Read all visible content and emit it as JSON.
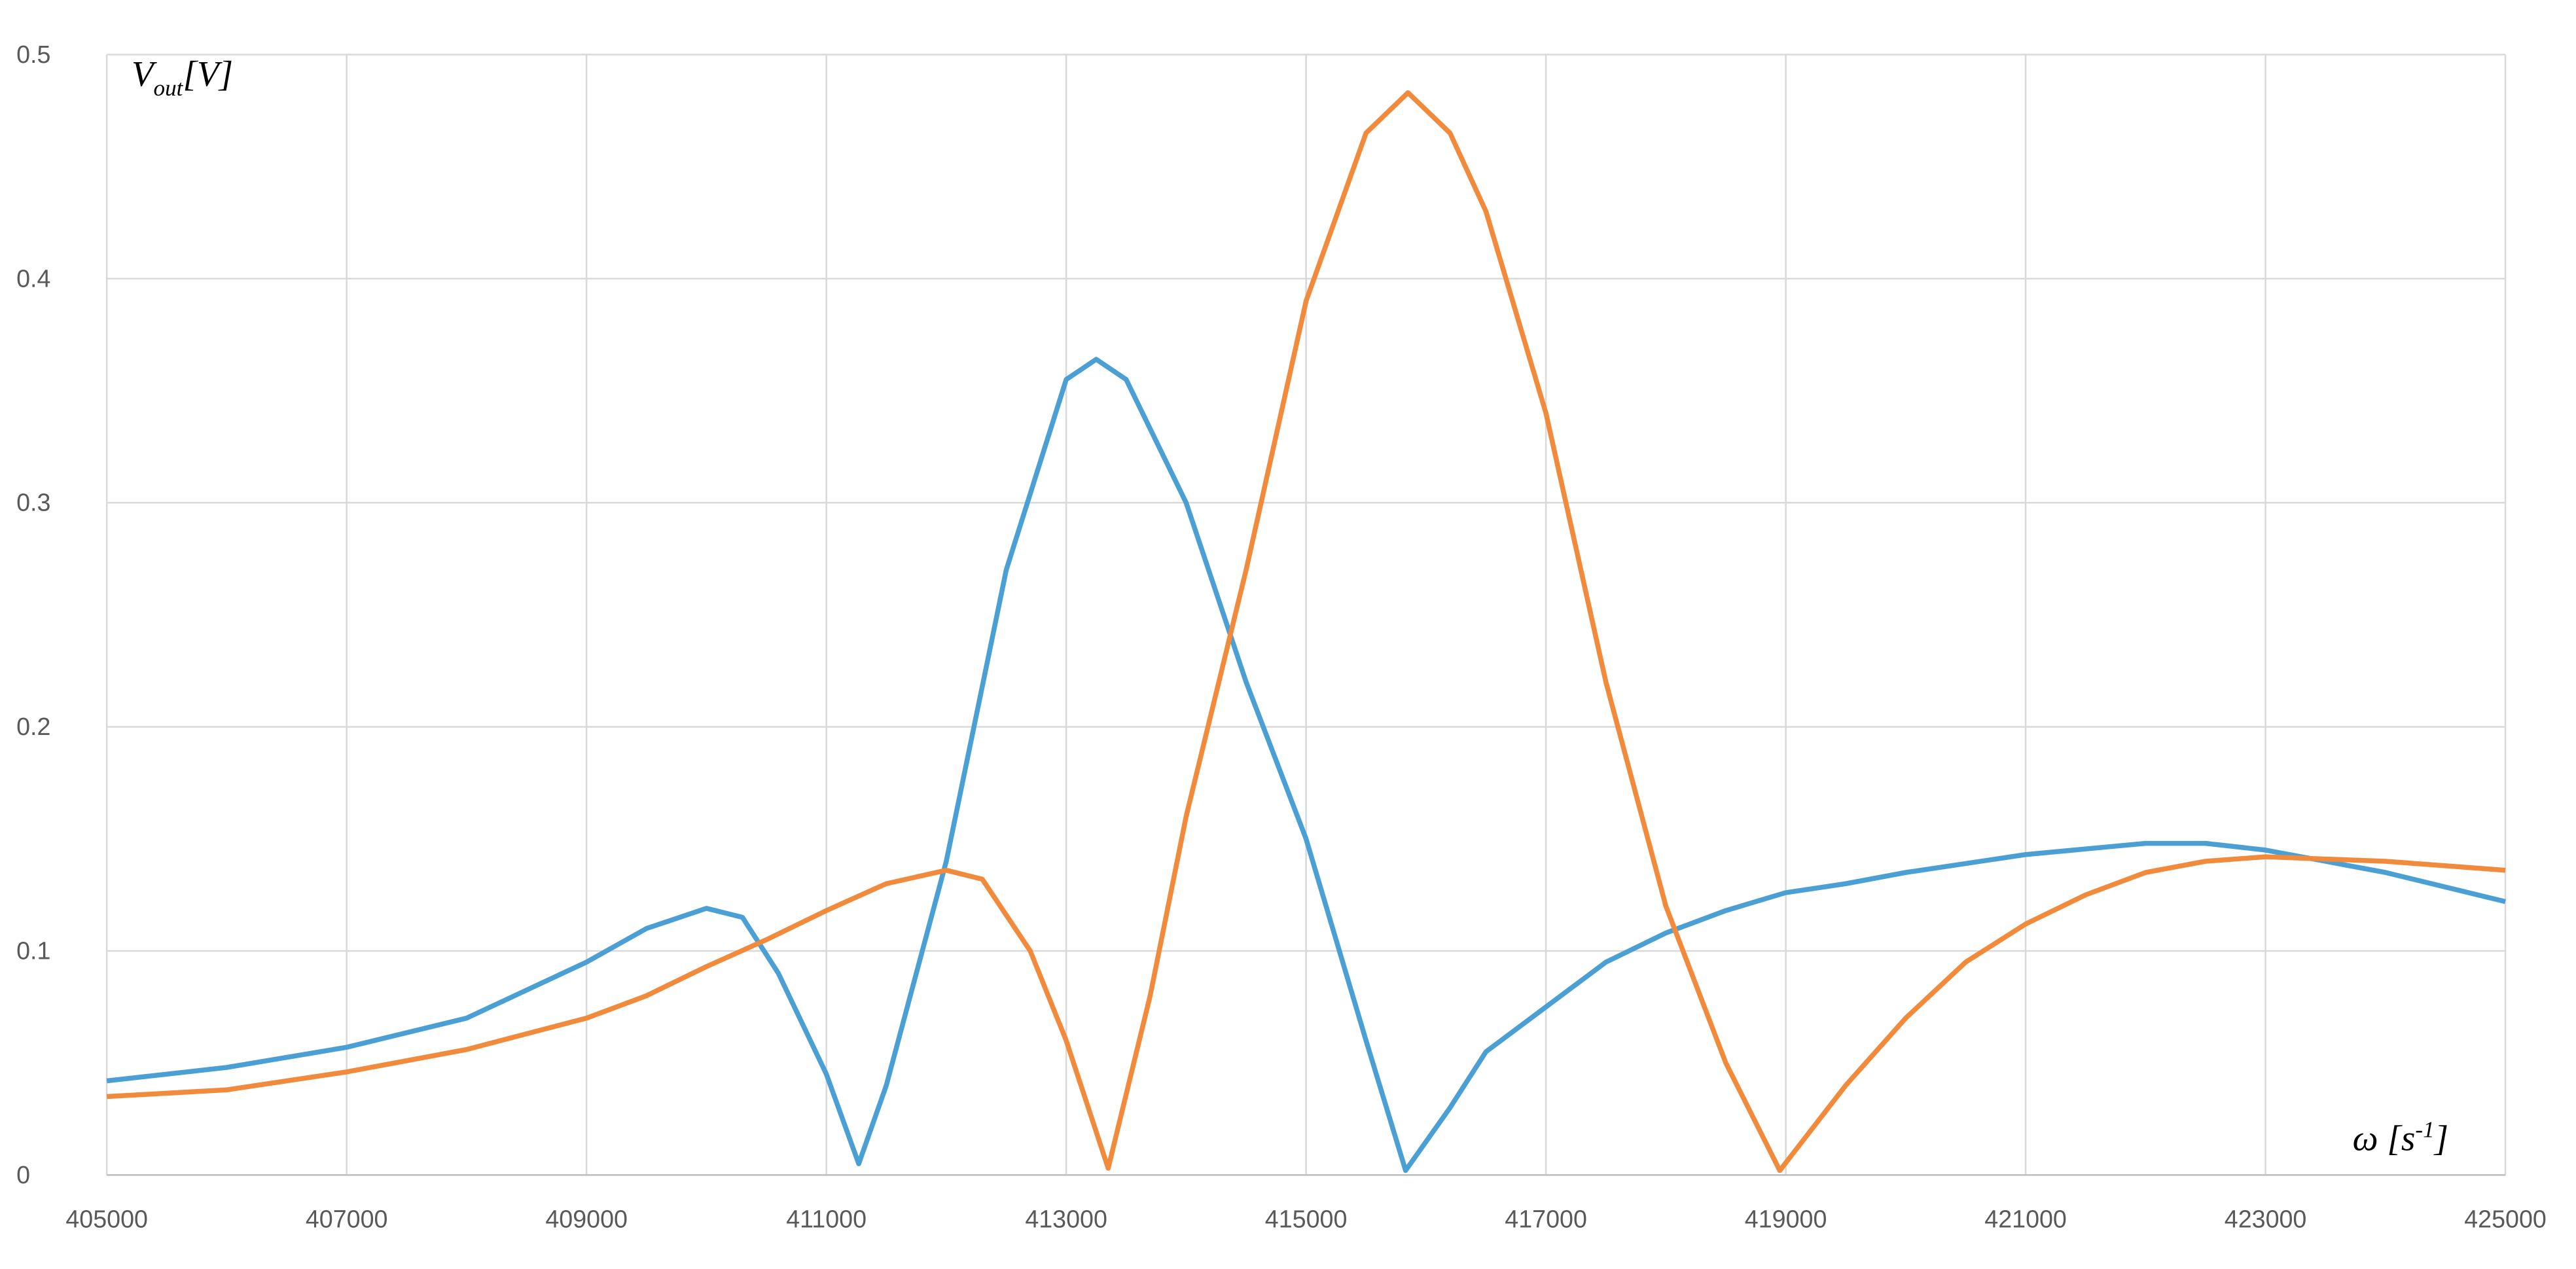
{
  "chart_data": {
    "type": "line",
    "y_label": {
      "main": "V",
      "sub": "out",
      "unit": "[V]"
    },
    "x_label": {
      "main": "ω [s",
      "sup": "-1",
      "end": "]"
    },
    "xlim": [
      405000,
      425000
    ],
    "xticks": [
      405000,
      407000,
      409000,
      411000,
      413000,
      415000,
      417000,
      419000,
      421000,
      423000,
      425000
    ],
    "ylim": [
      0,
      0.5
    ],
    "yticks": [
      0,
      0.1,
      0.2,
      0.3,
      0.4,
      0.5
    ],
    "grid": true,
    "series": [
      {
        "color": "#4a9fd4",
        "x": [
          405000,
          406000,
          407000,
          408000,
          409000,
          409500,
          410000,
          410300,
          410600,
          411000,
          411270,
          411500,
          412000,
          412500,
          413000,
          413250,
          413500,
          414000,
          414500,
          415000,
          415500,
          415830,
          416200,
          416500,
          417000,
          417500,
          418000,
          418500,
          419000,
          419500,
          420000,
          421000,
          422000,
          422500,
          423000,
          424000,
          425000
        ],
        "values": [
          0.042,
          0.048,
          0.057,
          0.07,
          0.095,
          0.11,
          0.119,
          0.115,
          0.09,
          0.045,
          0.005,
          0.04,
          0.14,
          0.27,
          0.355,
          0.364,
          0.355,
          0.3,
          0.22,
          0.15,
          0.06,
          0.002,
          0.03,
          0.055,
          0.075,
          0.095,
          0.108,
          0.118,
          0.126,
          0.13,
          0.135,
          0.143,
          0.148,
          0.148,
          0.145,
          0.135,
          0.122
        ]
      },
      {
        "color": "#f28a3c",
        "x": [
          405000,
          406000,
          407000,
          408000,
          409000,
          409500,
          410000,
          410500,
          411000,
          411500,
          412000,
          412300,
          412700,
          413000,
          413350,
          413700,
          414000,
          414500,
          415000,
          415500,
          415850,
          416200,
          416500,
          417000,
          417500,
          418000,
          418500,
          418950,
          419500,
          420000,
          420500,
          421000,
          421500,
          422000,
          422500,
          423000,
          424000,
          425000
        ],
        "values": [
          0.035,
          0.038,
          0.046,
          0.056,
          0.07,
          0.08,
          0.093,
          0.105,
          0.118,
          0.13,
          0.136,
          0.132,
          0.1,
          0.06,
          0.003,
          0.08,
          0.16,
          0.27,
          0.39,
          0.465,
          0.483,
          0.465,
          0.43,
          0.34,
          0.22,
          0.12,
          0.05,
          0.002,
          0.04,
          0.07,
          0.095,
          0.112,
          0.125,
          0.135,
          0.14,
          0.142,
          0.14,
          0.136
        ]
      }
    ]
  }
}
